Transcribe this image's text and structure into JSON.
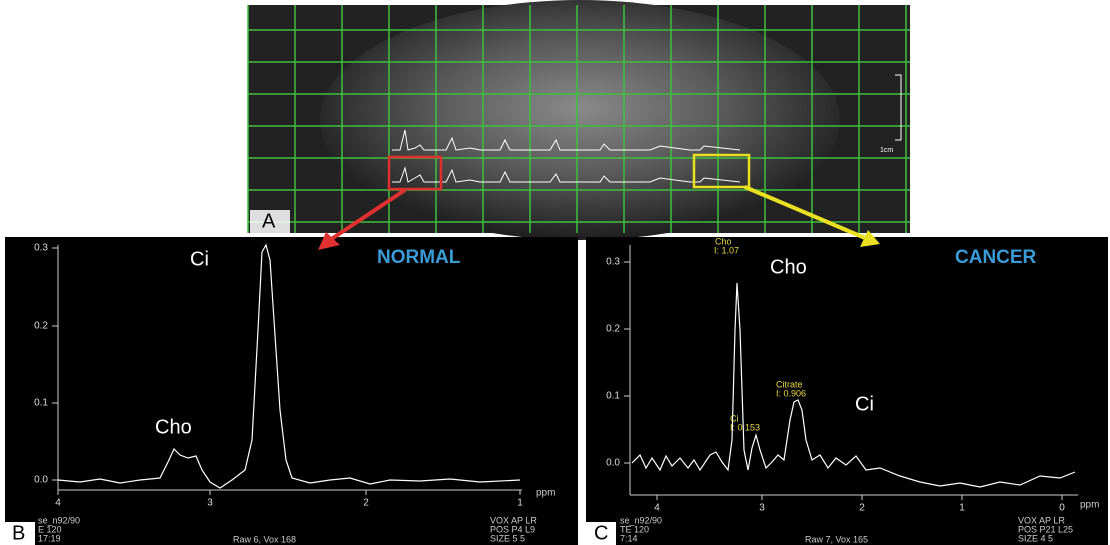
{
  "panel_a": {
    "label": "A",
    "scale_label": "1cm"
  },
  "panel_b": {
    "label": "B",
    "title": "NORMAL",
    "peak_labels": [
      "Ci",
      "Cho"
    ],
    "y_tick_labels": [
      "0.3",
      "0.2",
      "0.1",
      "0.0"
    ],
    "x_tick_labels": [
      "4",
      "3",
      "2",
      "1"
    ],
    "x_unit": "ppm",
    "footer_left": [
      "se_n92/90",
      "E 120",
      "17:19"
    ],
    "footer_center": "Raw 6, Vox 168",
    "footer_right": [
      "VOX  AP  LR",
      "POS  P4  L9",
      "SIZE  5  5"
    ]
  },
  "panel_c": {
    "label": "C",
    "title": "CANCER",
    "peak_labels": [
      "Cho",
      "Ci"
    ],
    "annotations": [
      "Cho",
      "I: 1.07",
      "Citrate",
      "I: 0.906",
      "Ci",
      "I: 0.153"
    ],
    "y_tick_labels": [
      "0.3",
      "0.2",
      "0.1",
      "0.0"
    ],
    "x_tick_labels": [
      "4",
      "3",
      "2",
      "1",
      "0"
    ],
    "x_unit": "ppm",
    "footer_left": [
      "se_n92/90",
      "TE 120",
      "7:14"
    ],
    "footer_center": "Raw 7, Vox 165",
    "footer_right": [
      "VOX  AP  LR",
      "POS  P21  L25",
      "SIZE  4  5"
    ]
  }
}
